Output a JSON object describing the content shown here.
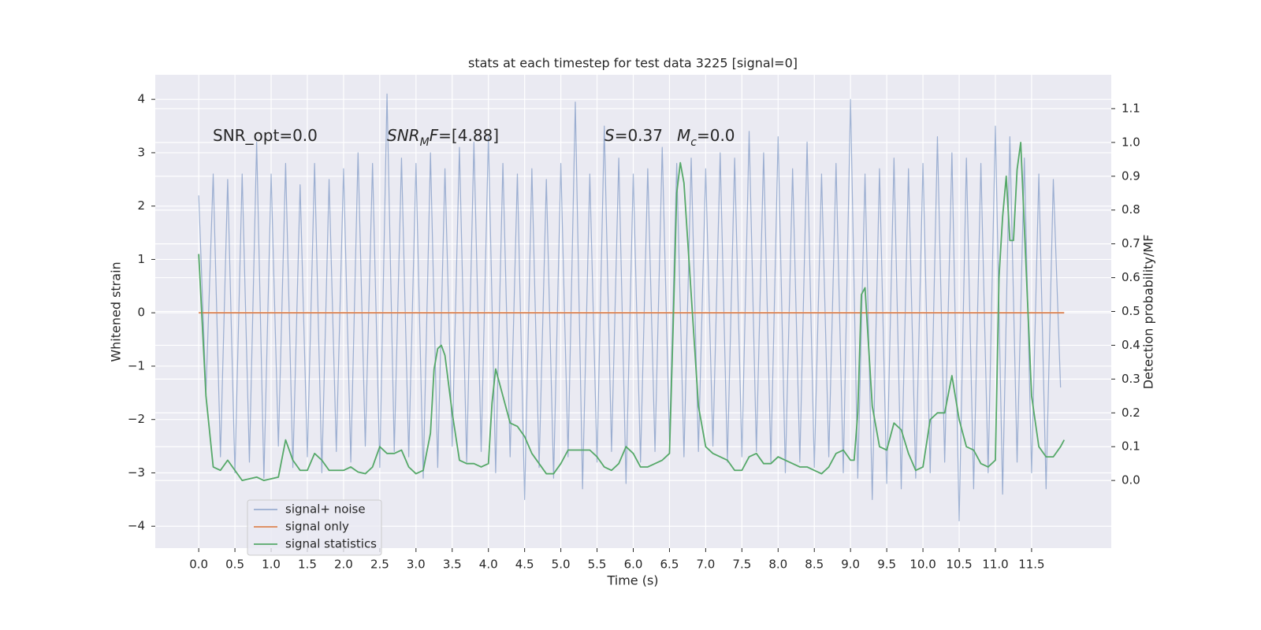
{
  "chart_data": {
    "type": "line",
    "title": "stats at each timestep for test data 3225 [signal=0]",
    "x_label": "Time (s)",
    "y_label": "Whitened strain",
    "y2_label": "Detection probability/MF",
    "xlim": [
      -0.6,
      12.6
    ],
    "ylim": [
      -4.41,
      4.46
    ],
    "y2lim": [
      -0.2,
      1.2
    ],
    "xticks": [
      {
        "value": 0,
        "label": "0.0"
      },
      {
        "value": 0.5,
        "label": "0.5"
      },
      {
        "value": 1,
        "label": "1.0"
      },
      {
        "value": 1.5,
        "label": "1.5"
      },
      {
        "value": 2,
        "label": "2.0"
      },
      {
        "value": 2.5,
        "label": "2.5"
      },
      {
        "value": 3,
        "label": "3.0"
      },
      {
        "value": 3.5,
        "label": "3.5"
      },
      {
        "value": 4,
        "label": "4.0"
      },
      {
        "value": 4.5,
        "label": "4.5"
      },
      {
        "value": 5,
        "label": "5.0"
      },
      {
        "value": 5.5,
        "label": "5.5"
      },
      {
        "value": 6,
        "label": "6.0"
      },
      {
        "value": 6.5,
        "label": "6.5"
      },
      {
        "value": 7,
        "label": "7.0"
      },
      {
        "value": 7.5,
        "label": "7.5"
      },
      {
        "value": 8,
        "label": "8.0"
      },
      {
        "value": 8.5,
        "label": "8.5"
      },
      {
        "value": 9,
        "label": "9.0"
      },
      {
        "value": 9.5,
        "label": "9.5"
      },
      {
        "value": 10,
        "label": "10.0"
      },
      {
        "value": 10.5,
        "label": "10.5"
      },
      {
        "value": 11,
        "label": "11.0"
      },
      {
        "value": 11.5,
        "label": "11.5"
      }
    ],
    "yticks": [
      {
        "value": -4,
        "label": "−4"
      },
      {
        "value": -3,
        "label": "−3"
      },
      {
        "value": -2,
        "label": "−2"
      },
      {
        "value": -1,
        "label": "−1"
      },
      0,
      1,
      2,
      3,
      4
    ],
    "y2ticks": [
      {
        "value": 0,
        "label": "0.0"
      },
      0.1,
      0.2,
      0.3,
      0.4,
      0.5,
      0.6,
      0.7,
      0.8,
      0.9,
      {
        "value": 1,
        "label": "1.0"
      },
      1.1
    ],
    "grid": true,
    "legend": "lower left",
    "series": [
      {
        "name": "signal+ noise",
        "color": "#4c72b0",
        "opacity": 0.5,
        "x": [
          0.0,
          0.1,
          0.2,
          0.3,
          0.4,
          0.5,
          0.6,
          0.7,
          0.8,
          0.9,
          1.0,
          1.1,
          1.2,
          1.3,
          1.4,
          1.5,
          1.6,
          1.7,
          1.8,
          1.9,
          2.0,
          2.1,
          2.2,
          2.3,
          2.4,
          2.5,
          2.6,
          2.7,
          2.8,
          2.9,
          3.0,
          3.1,
          3.2,
          3.3,
          3.4,
          3.5,
          3.6,
          3.7,
          3.8,
          3.9,
          4.0,
          4.1,
          4.2,
          4.3,
          4.4,
          4.5,
          4.6,
          4.7,
          4.8,
          4.9,
          5.0,
          5.1,
          5.2,
          5.3,
          5.4,
          5.5,
          5.6,
          5.7,
          5.8,
          5.9,
          6.0,
          6.1,
          6.2,
          6.3,
          6.4,
          6.5,
          6.6,
          6.7,
          6.8,
          6.9,
          7.0,
          7.1,
          7.2,
          7.3,
          7.4,
          7.5,
          7.6,
          7.7,
          7.8,
          7.9,
          8.0,
          8.1,
          8.2,
          8.3,
          8.4,
          8.5,
          8.6,
          8.7,
          8.8,
          8.9,
          9.0,
          9.1,
          9.2,
          9.3,
          9.4,
          9.5,
          9.6,
          9.7,
          9.8,
          9.9,
          10.0,
          10.1,
          10.2,
          10.3,
          10.4,
          10.5,
          10.6,
          10.7,
          10.8,
          10.9,
          11.0,
          11.1,
          11.2,
          11.3,
          11.4,
          11.5,
          11.6,
          11.7,
          11.8,
          11.9
        ],
        "values": [
          2.2,
          -1.5,
          2.6,
          -2.7,
          2.5,
          -3.0,
          2.6,
          -2.8,
          3.2,
          -3.1,
          2.6,
          -2.5,
          2.8,
          -2.9,
          2.4,
          -2.7,
          2.8,
          -3.0,
          2.5,
          -2.6,
          2.7,
          -2.8,
          3.0,
          -2.5,
          2.8,
          -2.9,
          4.1,
          -2.6,
          2.9,
          -2.7,
          2.8,
          -3.1,
          3.0,
          -2.9,
          2.7,
          -2.5,
          3.1,
          -2.8,
          3.2,
          -2.6,
          3.3,
          -3.0,
          2.8,
          -2.7,
          2.6,
          -3.5,
          2.7,
          -2.9,
          2.5,
          -3.1,
          2.8,
          -2.7,
          3.95,
          -3.3,
          2.6,
          -2.8,
          3.5,
          -2.6,
          2.9,
          -3.2,
          2.6,
          -2.8,
          2.7,
          -2.6,
          3.1,
          -2.4,
          2.8,
          -2.7,
          2.9,
          -2.6,
          2.7,
          -2.5,
          3.0,
          -2.8,
          2.9,
          -2.7,
          3.4,
          -2.6,
          3.0,
          -2.8,
          3.3,
          -3.0,
          2.7,
          -2.8,
          3.2,
          -2.9,
          2.6,
          -2.7,
          2.8,
          -3.0,
          4.0,
          -3.1,
          2.6,
          -3.5,
          2.7,
          -3.2,
          2.9,
          -3.3,
          2.7,
          -3.1,
          2.8,
          -3.0,
          3.3,
          -2.8,
          3.0,
          -3.9,
          2.9,
          -3.3,
          2.8,
          -3.0,
          3.5,
          -3.4,
          3.3,
          -2.8,
          2.9,
          -3.0,
          2.6,
          -3.3,
          2.5,
          -1.4
        ]
      },
      {
        "name": "signal only",
        "color": "#dd8452",
        "opacity": 1,
        "x": [
          0.0,
          11.95
        ],
        "values": [
          0,
          0
        ]
      },
      {
        "name": "signal statistics",
        "color": "#55a868",
        "opacity": 1,
        "axis": "y2",
        "x": [
          0.0,
          0.1,
          0.2,
          0.3,
          0.4,
          0.5,
          0.6,
          0.7,
          0.8,
          0.9,
          1.0,
          1.1,
          1.2,
          1.3,
          1.4,
          1.5,
          1.6,
          1.7,
          1.8,
          1.9,
          2.0,
          2.1,
          2.2,
          2.3,
          2.4,
          2.5,
          2.6,
          2.7,
          2.8,
          2.9,
          3.0,
          3.1,
          3.2,
          3.25,
          3.3,
          3.35,
          3.4,
          3.5,
          3.6,
          3.7,
          3.8,
          3.9,
          4.0,
          4.05,
          4.1,
          4.2,
          4.3,
          4.4,
          4.5,
          4.6,
          4.7,
          4.8,
          4.9,
          5.0,
          5.1,
          5.2,
          5.3,
          5.4,
          5.5,
          5.6,
          5.7,
          5.8,
          5.9,
          6.0,
          6.1,
          6.2,
          6.3,
          6.4,
          6.5,
          6.55,
          6.6,
          6.65,
          6.7,
          6.8,
          6.9,
          7.0,
          7.1,
          7.2,
          7.3,
          7.4,
          7.5,
          7.6,
          7.7,
          7.8,
          7.9,
          8.0,
          8.1,
          8.2,
          8.3,
          8.4,
          8.5,
          8.6,
          8.7,
          8.8,
          8.9,
          9.0,
          9.05,
          9.1,
          9.15,
          9.2,
          9.3,
          9.4,
          9.5,
          9.6,
          9.7,
          9.8,
          9.9,
          10.0,
          10.1,
          10.2,
          10.3,
          10.4,
          10.5,
          10.6,
          10.7,
          10.8,
          10.9,
          11.0,
          11.05,
          11.1,
          11.15,
          11.2,
          11.25,
          11.3,
          11.35,
          11.4,
          11.5,
          11.6,
          11.7,
          11.8,
          11.9,
          11.95
        ],
        "values": [
          0.67,
          0.25,
          0.04,
          0.03,
          0.06,
          0.03,
          0.0,
          0.005,
          0.01,
          0.0,
          0.005,
          0.01,
          0.12,
          0.06,
          0.03,
          0.03,
          0.08,
          0.06,
          0.03,
          0.03,
          0.03,
          0.04,
          0.025,
          0.02,
          0.04,
          0.1,
          0.08,
          0.08,
          0.09,
          0.04,
          0.02,
          0.03,
          0.14,
          0.33,
          0.39,
          0.4,
          0.37,
          0.2,
          0.06,
          0.05,
          0.05,
          0.04,
          0.05,
          0.23,
          0.33,
          0.25,
          0.17,
          0.16,
          0.13,
          0.08,
          0.05,
          0.02,
          0.02,
          0.05,
          0.09,
          0.09,
          0.09,
          0.09,
          0.07,
          0.04,
          0.03,
          0.05,
          0.1,
          0.08,
          0.04,
          0.04,
          0.05,
          0.06,
          0.08,
          0.45,
          0.85,
          0.94,
          0.88,
          0.55,
          0.22,
          0.1,
          0.08,
          0.07,
          0.06,
          0.03,
          0.03,
          0.07,
          0.08,
          0.05,
          0.05,
          0.07,
          0.06,
          0.05,
          0.04,
          0.04,
          0.03,
          0.02,
          0.04,
          0.08,
          0.09,
          0.06,
          0.06,
          0.2,
          0.55,
          0.57,
          0.22,
          0.1,
          0.09,
          0.17,
          0.15,
          0.08,
          0.03,
          0.04,
          0.18,
          0.2,
          0.2,
          0.31,
          0.18,
          0.1,
          0.09,
          0.05,
          0.04,
          0.06,
          0.6,
          0.78,
          0.9,
          0.71,
          0.71,
          0.92,
          1.0,
          0.75,
          0.25,
          0.1,
          0.07,
          0.07,
          0.1,
          0.12
        ]
      }
    ],
    "annotations": [
      {
        "parts": [
          {
            "text": "SNR_opt=0.0",
            "style": "normal"
          }
        ]
      },
      {
        "parts": [
          {
            "text": "SNR",
            "style": "italic"
          },
          {
            "text": "M",
            "style": "italic-sub"
          },
          {
            "text": "F",
            "style": "italic"
          },
          {
            "text": "=[4.88]",
            "style": "normal"
          }
        ]
      },
      {
        "parts": [
          {
            "text": "S",
            "style": "italic"
          },
          {
            "text": "=0.37",
            "style": "normal"
          }
        ]
      },
      {
        "parts": [
          {
            "text": "M",
            "style": "italic"
          },
          {
            "text": "c",
            "style": "italic-sub"
          },
          {
            "text": "=0.0",
            "style": "normal"
          }
        ]
      }
    ]
  }
}
